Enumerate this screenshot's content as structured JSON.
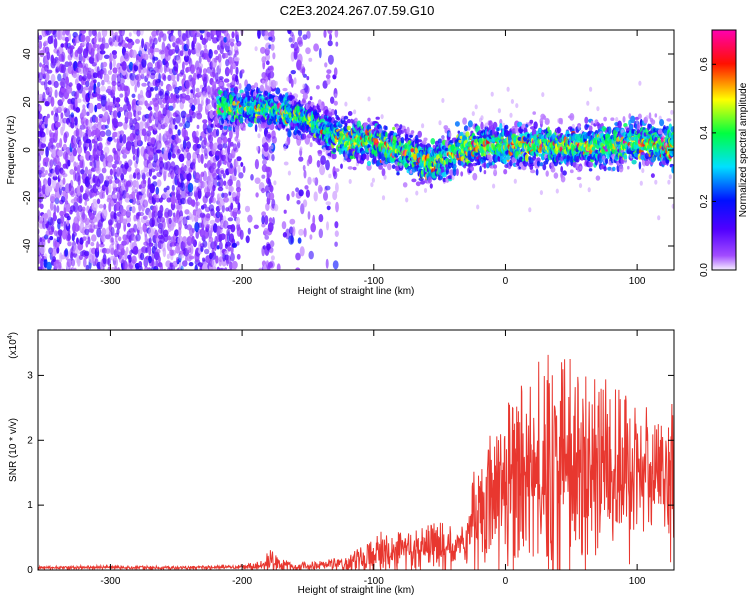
{
  "page": {
    "title": "C2E3.2024.267.07.59.G10"
  },
  "chart_data": [
    {
      "type": "heatmap",
      "title": "C2E3.2024.267.07.59.G10",
      "xlabel": "Height of straight line (km)",
      "ylabel": "Frequency (Hz)",
      "xlim": [
        -355,
        128
      ],
      "ylim": [
        -50,
        50
      ],
      "xticks": [
        "-300",
        "-200",
        "-100",
        "0",
        "100"
      ],
      "xtick_values": [
        -300,
        -200,
        -100,
        0,
        100
      ],
      "yticks": [
        "-40",
        "-20",
        "0",
        "20",
        "40"
      ],
      "ytick_values": [
        -40,
        -20,
        0,
        20,
        40
      ],
      "colorbar": {
        "label": "Normalized spectral amplitude",
        "range": [
          0,
          0.7
        ],
        "ticks": [
          "0.0",
          "0.2",
          "0.4",
          "0.6"
        ],
        "tick_values": [
          0,
          0.2,
          0.4,
          0.6
        ],
        "colormap": "rainbow (white-violet-blue-cyan-green-yellow-red-magenta)"
      },
      "ridge": {
        "description": "dominant frequency band",
        "x": [
          -215,
          -180,
          -150,
          -130,
          -100,
          -70,
          -60,
          -30,
          0,
          50,
          100,
          128
        ],
        "y": [
          18,
          17,
          13,
          5,
          3,
          -2,
          -6,
          1,
          2,
          1,
          3,
          1
        ]
      },
      "grid": false
    },
    {
      "type": "line",
      "xlabel": "Height of straight line (km)",
      "ylabel": "SNR (10 * v/v)",
      "ylabel_scale": "(x10",
      "ylabel_scale_exp": "4",
      "ylabel_scale_close": ")",
      "xlim": [
        -355,
        128
      ],
      "ylim": [
        0,
        3.7
      ],
      "xticks": [
        "-300",
        "-200",
        "-100",
        "0",
        "100"
      ],
      "xtick_values": [
        -300,
        -200,
        -100,
        0,
        100
      ],
      "yticks": [
        "0",
        "1",
        "2",
        "3"
      ],
      "ytick_values": [
        0,
        1,
        2,
        3
      ],
      "series": [
        {
          "color": "#e8372f",
          "x": [
            -355,
            -300,
            -250,
            -200,
            -185,
            -178,
            -172,
            -160,
            -140,
            -120,
            -105,
            -90,
            -75,
            -60,
            -45,
            -35,
            -28,
            -20,
            -10,
            0,
            10,
            20,
            30,
            40,
            50,
            60,
            70,
            80,
            90,
            100,
            110,
            120,
            128
          ],
          "y_envelope": [
            0.06,
            0.07,
            0.06,
            0.08,
            0.15,
            0.35,
            0.18,
            0.12,
            0.15,
            0.2,
            0.45,
            0.65,
            0.55,
            0.7,
            0.75,
            0.5,
            1.2,
            1.9,
            2.3,
            2.6,
            2.8,
            3.0,
            3.4,
            3.2,
            3.3,
            3.1,
            3.0,
            2.9,
            2.7,
            2.6,
            2.5,
            2.4,
            2.6
          ],
          "y_mean": [
            0.03,
            0.04,
            0.03,
            0.05,
            0.06,
            0.12,
            0.07,
            0.05,
            0.06,
            0.08,
            0.18,
            0.25,
            0.22,
            0.25,
            0.3,
            0.3,
            0.6,
            0.9,
            1.1,
            1.2,
            1.35,
            1.4,
            1.5,
            1.45,
            1.5,
            1.45,
            1.45,
            1.45,
            1.4,
            1.4,
            1.4,
            1.4,
            1.45
          ]
        }
      ],
      "grid": false
    }
  ]
}
